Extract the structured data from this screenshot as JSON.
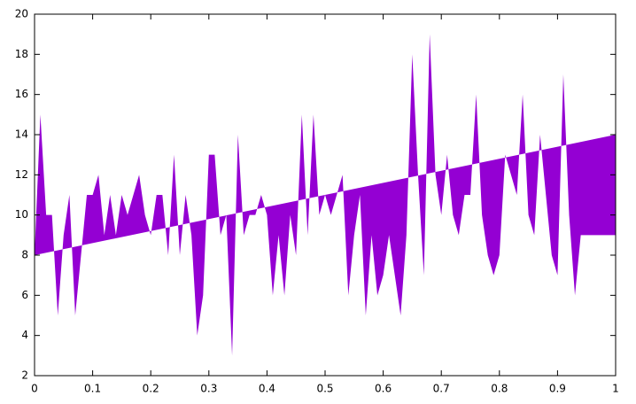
{
  "chart_data": {
    "type": "filledcurves",
    "x": [
      0,
      0.01,
      0.02,
      0.03,
      0.04,
      0.05,
      0.06,
      0.07,
      0.08,
      0.09,
      0.1,
      0.11,
      0.12,
      0.13,
      0.14,
      0.15,
      0.16,
      0.17,
      0.18,
      0.19,
      0.2,
      0.21,
      0.22,
      0.23,
      0.24,
      0.25,
      0.26,
      0.27,
      0.28,
      0.29,
      0.3,
      0.31,
      0.32,
      0.33,
      0.34,
      0.35,
      0.36,
      0.37,
      0.38,
      0.39,
      0.4,
      0.41,
      0.42,
      0.43,
      0.44,
      0.45,
      0.46,
      0.47,
      0.48,
      0.49,
      0.5,
      0.51,
      0.52,
      0.53,
      0.54,
      0.55,
      0.56,
      0.57,
      0.58,
      0.59,
      0.6,
      0.61,
      0.62,
      0.63,
      0.64,
      0.65,
      0.66,
      0.67,
      0.68,
      0.69,
      0.7,
      0.71,
      0.72,
      0.73,
      0.74,
      0.75,
      0.76,
      0.77,
      0.78,
      0.79,
      0.8,
      0.81,
      0.82,
      0.83,
      0.84,
      0.85,
      0.86,
      0.87,
      0.88,
      0.89,
      0.9,
      0.91,
      0.92,
      0.93,
      0.94,
      0.95,
      0.96,
      0.97,
      0.98,
      0.99,
      1
    ],
    "values": [
      8,
      15,
      10,
      10,
      5,
      9,
      11,
      5,
      8,
      11,
      11,
      12,
      9,
      11,
      9,
      11,
      10,
      11,
      12,
      10,
      9,
      11,
      11,
      8,
      13,
      8,
      11,
      9,
      4,
      6,
      13,
      13,
      9,
      10,
      3,
      14,
      9,
      10,
      10,
      11,
      10,
      6,
      9,
      6,
      10,
      8,
      15,
      9,
      15,
      10,
      11,
      10,
      11,
      12,
      6,
      9,
      11,
      5,
      9,
      6,
      7,
      9,
      7,
      5,
      9,
      18,
      12,
      7,
      19,
      12,
      10,
      13,
      10,
      9,
      11,
      11,
      16,
      10,
      8,
      7,
      8,
      13,
      12,
      11,
      16,
      10,
      9,
      14,
      11,
      8,
      7,
      17,
      10,
      6,
      9,
      9,
      9,
      9,
      9,
      9,
      9
    ],
    "baseline": {
      "x": [
        0,
        1
      ],
      "values": [
        8,
        14
      ]
    },
    "color": "#9400d3",
    "xlim": [
      0,
      1
    ],
    "xticks": [
      0,
      0.1,
      0.2,
      0.3,
      0.4,
      0.5,
      0.6,
      0.7,
      0.8,
      0.9,
      1
    ],
    "ylim": [
      2,
      20
    ],
    "yticks": [
      2,
      4,
      6,
      8,
      10,
      12,
      14,
      16,
      18,
      20
    ],
    "grid": false
  }
}
